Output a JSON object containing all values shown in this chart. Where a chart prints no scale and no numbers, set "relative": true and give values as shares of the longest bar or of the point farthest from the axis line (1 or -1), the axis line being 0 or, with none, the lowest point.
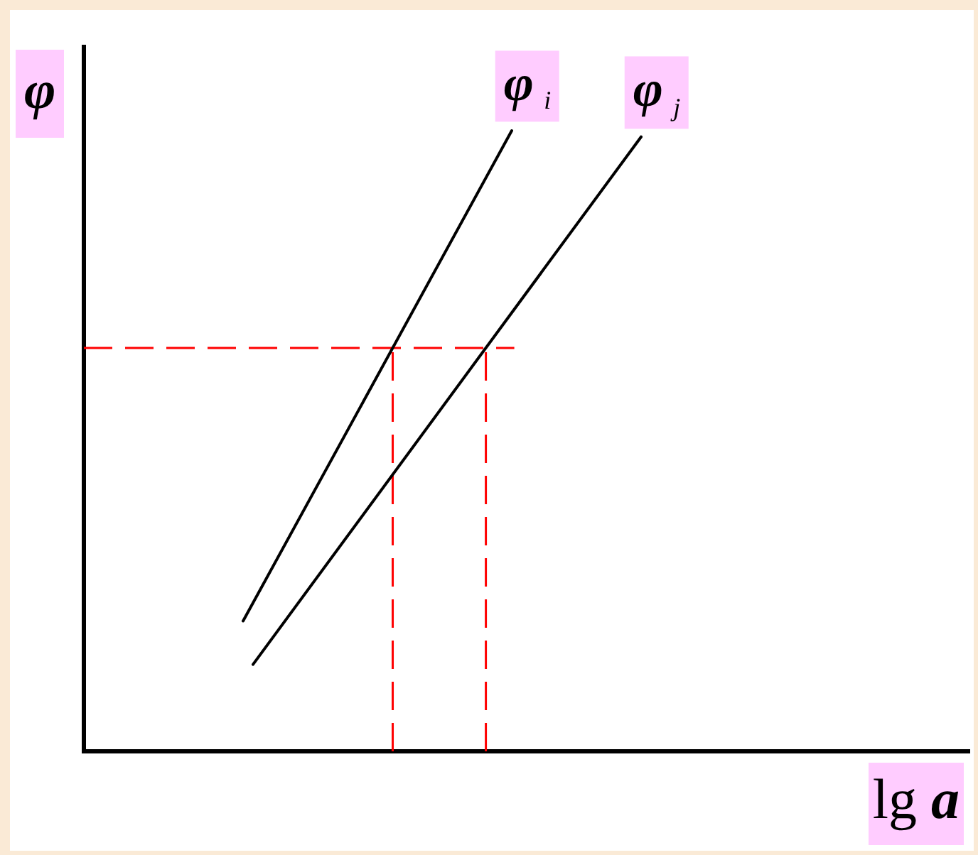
{
  "chart_data": {
    "type": "line",
    "xlabel": "lg a",
    "ylabel": "φ",
    "relative": true,
    "tick_labels": false,
    "categories": [
      null,
      null,
      null,
      null,
      null,
      null,
      null,
      null,
      null,
      null,
      null,
      null,
      null,
      null,
      null,
      null,
      null,
      null,
      null,
      null,
      null,
      null,
      null,
      null,
      null,
      null,
      null,
      null,
      null,
      null,
      null,
      null,
      null,
      null,
      null,
      null,
      null,
      null,
      null,
      null,
      null,
      null,
      null,
      null,
      null,
      null,
      null,
      null,
      null,
      null,
      null,
      null,
      null,
      null,
      null,
      null,
      null,
      null,
      null,
      null,
      null,
      null,
      null,
      null,
      null,
      null,
      null,
      null,
      null,
      null,
      null,
      null,
      null,
      null,
      null,
      null,
      null,
      null,
      null,
      null,
      null,
      null,
      null,
      null,
      null,
      null,
      null,
      null,
      null,
      null
    ],
    "series": [
      {
        "name": "φ$_{i}$",
        "color": "#000000",
        "values": [
          null,
          null,
          null,
          null,
          null,
          null,
          null,
          null,
          null,
          null,
          null,
          null,
          null,
          null,
          null,
          null,
          0.21,
          null,
          null,
          null,
          null,
          null,
          null,
          null,
          null,
          null,
          null,
          null,
          null,
          null,
          null,
          null,
          null,
          null,
          null,
          null,
          null,
          null,
          null,
          null,
          null,
          null,
          null,
          1,
          null,
          null,
          null,
          null,
          null,
          null,
          null,
          null,
          null,
          null,
          null,
          null,
          null,
          null,
          null,
          null,
          null,
          null,
          null,
          null,
          null,
          null,
          null,
          null,
          null,
          null,
          null,
          null,
          null,
          null,
          null,
          null,
          null,
          null,
          null,
          null,
          null,
          null,
          null,
          null,
          null,
          null,
          null,
          null,
          null,
          null
        ]
      },
      {
        "name": "φ$_{j}$",
        "color": "#000000",
        "values": [
          null,
          null,
          null,
          null,
          null,
          null,
          null,
          null,
          null,
          null,
          null,
          null,
          null,
          null,
          null,
          null,
          null,
          0.14,
          null,
          null,
          null,
          null,
          null,
          null,
          null,
          null,
          null,
          null,
          null,
          null,
          null,
          null,
          null,
          null,
          null,
          null,
          null,
          null,
          null,
          null,
          null,
          null,
          null,
          null,
          null,
          null,
          null,
          null,
          null,
          null,
          null,
          null,
          null,
          null,
          null,
          null,
          0.99,
          null,
          null,
          null,
          null,
          null,
          null,
          null,
          null,
          null,
          null,
          null,
          null,
          null,
          null,
          null,
          null,
          null,
          null,
          null,
          null,
          null,
          null,
          null,
          null,
          null,
          null,
          null,
          null,
          null,
          null,
          null,
          null,
          null
        ]
      }
    ],
    "ref_lines": [
      {
        "axis": "y",
        "value": 0.65,
        "color": "#ff0000",
        "line_style": "dashed"
      }
    ]
  }
}
